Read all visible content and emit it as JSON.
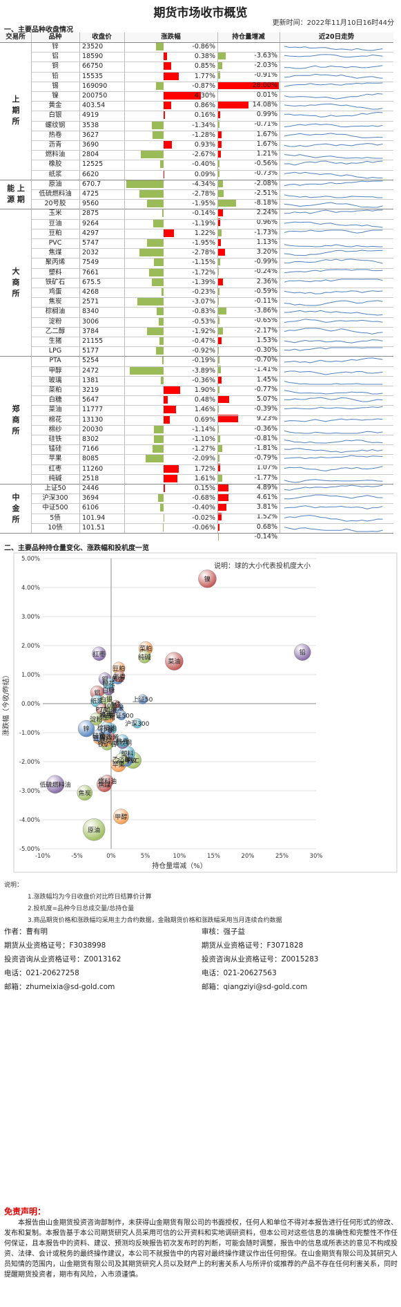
{
  "title": "期货市场收市概览",
  "update_time": "更新时间：2022年11月10日16时44分",
  "section1": "一、主要品种收盘情况",
  "section2": "二、主要品种持仓量变化、涨跌幅和投机度一览",
  "headers": [
    "交易所",
    "品种",
    "收盘价",
    "涨跌幅",
    "持仓量增减",
    "近20日走势"
  ],
  "colors": {
    "up": "#ff0000",
    "down": "#9bbb59",
    "spark": "#4f81bd"
  },
  "rows": [
    {
      "n": "锌",
      "p": "23520",
      "c": -0.86,
      "o": -3.63,
      "cs": "-0.86%",
      "os": "-3.63%"
    },
    {
      "n": "铝",
      "p": "18590",
      "c": 0.38,
      "o": -2.03,
      "cs": "0.38%",
      "os": "-2.03%"
    },
    {
      "n": "铜",
      "p": "66750",
      "c": 0.85,
      "o": -0.91,
      "cs": "0.85%",
      "os": "-0.91%"
    },
    {
      "n": "铅",
      "p": "15535",
      "c": 1.77,
      "o": 28.0,
      "cs": "1.77%",
      "os": "28.00%"
    },
    {
      "n": "锡",
      "p": "169090",
      "c": -0.87,
      "o": 0.01,
      "cs": "-0.87%",
      "os": "0.01%"
    },
    {
      "n": "镍",
      "p": "200750",
      "c": 4.3,
      "o": 14.08,
      "cs": "4.30%",
      "os": "14.08%"
    },
    {
      "n": "黄金",
      "p": "403.54",
      "c": 0.86,
      "o": 0.99,
      "cs": "0.86%",
      "os": "0.99%"
    },
    {
      "n": "白银",
      "p": "4919",
      "c": 0.16,
      "o": -0.71,
      "cs": "0.16%",
      "os": "-0.71%"
    },
    {
      "n": "螺纹钢",
      "p": "3538",
      "c": -1.34,
      "o": 1.67,
      "cs": "-1.34%",
      "os": "1.67%"
    },
    {
      "n": "热卷",
      "p": "3627",
      "c": -1.28,
      "o": 1.67,
      "cs": "-1.28%",
      "os": "1.67%"
    },
    {
      "n": "沥青",
      "p": "3690",
      "c": 0.93,
      "o": 1.21,
      "cs": "0.93%",
      "os": "1.21%"
    },
    {
      "n": "燃料油",
      "p": "2804",
      "c": -2.67,
      "o": -0.56,
      "cs": "-2.67%",
      "os": "-0.56%"
    },
    {
      "n": "橡胶",
      "p": "12525",
      "c": -0.4,
      "o": -0.73,
      "cs": "-0.40%",
      "os": "-0.73%"
    },
    {
      "n": "纸浆",
      "p": "6620",
      "c": 0.09,
      "o": -2.08,
      "cs": "0.09%",
      "os": "-2.08%"
    },
    {
      "n": "原油",
      "p": "670.7",
      "c": -4.34,
      "o": -2.51,
      "cs": "-4.34%",
      "os": "-2.51%"
    },
    {
      "n": "低硫燃料油",
      "p": "4725",
      "c": -2.78,
      "o": -8.18,
      "cs": "-2.78%",
      "os": "-8.18%"
    },
    {
      "n": "20号胶",
      "p": "9560",
      "c": -1.95,
      "o": 2.24,
      "cs": "-1.95%",
      "os": "2.24%"
    },
    {
      "n": "玉米",
      "p": "2875",
      "c": -0.14,
      "o": 0.96,
      "cs": "-0.14%",
      "os": "0.96%"
    },
    {
      "n": "豆油",
      "p": "9264",
      "c": -1.19,
      "o": -1.73,
      "cs": "-1.19%",
      "os": "-1.73%"
    },
    {
      "n": "豆粕",
      "p": "4297",
      "c": 1.22,
      "o": 1.13,
      "cs": "1.22%",
      "os": "1.13%"
    },
    {
      "n": "PVC",
      "p": "5747",
      "c": -1.95,
      "o": 3.2,
      "cs": "-1.95%",
      "os": "3.20%"
    },
    {
      "n": "焦煤",
      "p": "2032",
      "c": -2.78,
      "o": -0.99,
      "cs": "-2.78%",
      "os": "-0.99%"
    },
    {
      "n": "聚丙烯",
      "p": "7549",
      "c": -1.15,
      "o": -0.24,
      "cs": "-1.15%",
      "os": "-0.24%"
    },
    {
      "n": "塑料",
      "p": "7661",
      "c": -1.72,
      "o": 2.36,
      "cs": "-1.72%",
      "os": "2.36%"
    },
    {
      "n": "铁矿石",
      "p": "675.5",
      "c": -1.39,
      "o": -0.59,
      "cs": "-1.39%",
      "os": "-0.59%"
    },
    {
      "n": "鸡蛋",
      "p": "4268",
      "c": -0.23,
      "o": -0.11,
      "cs": "-0.23%",
      "os": "-0.11%"
    },
    {
      "n": "焦炭",
      "p": "2571",
      "c": -3.07,
      "o": -3.86,
      "cs": "-3.07%",
      "os": "-3.86%"
    },
    {
      "n": "棕榈油",
      "p": "8340",
      "c": -0.83,
      "o": -0.65,
      "cs": "-0.83%",
      "os": "-0.65%"
    },
    {
      "n": "淀粉",
      "p": "3006",
      "c": -0.53,
      "o": -2.17,
      "cs": "-0.53%",
      "os": "-2.17%"
    },
    {
      "n": "乙二醇",
      "p": "3784",
      "c": -1.92,
      "o": 1.53,
      "cs": "-1.92%",
      "os": "1.53%"
    },
    {
      "n": "生猪",
      "p": "21155",
      "c": -0.47,
      "o": -0.3,
      "cs": "-0.47%",
      "os": "-0.30%"
    },
    {
      "n": "LPG",
      "p": "5177",
      "c": -0.92,
      "o": -0.7,
      "cs": "-0.92%",
      "os": "-0.70%"
    },
    {
      "n": "PTA",
      "p": "5254",
      "c": -0.19,
      "o": -1.41,
      "cs": "-0.19%",
      "os": "-1.41%"
    },
    {
      "n": "甲醇",
      "p": "2472",
      "c": -3.89,
      "o": 1.45,
      "cs": "-3.89%",
      "os": "1.45%"
    },
    {
      "n": "玻璃",
      "p": "1381",
      "c": -0.36,
      "o": -0.77,
      "cs": "-0.36%",
      "os": "-0.77%"
    },
    {
      "n": "菜粕",
      "p": "3219",
      "c": 1.9,
      "o": 5.07,
      "cs": "1.90%",
      "os": "5.07%"
    },
    {
      "n": "白糖",
      "p": "5647",
      "c": 0.48,
      "o": -0.39,
      "cs": "0.48%",
      "os": "-0.39%"
    },
    {
      "n": "菜油",
      "p": "11777",
      "c": 1.46,
      "o": 9.23,
      "cs": "1.46%",
      "os": "9.23%"
    },
    {
      "n": "棉花",
      "p": "13130",
      "c": 0.69,
      "o": -0.36,
      "cs": "0.69%",
      "os": "-0.36%"
    },
    {
      "n": "棉纱",
      "p": "20030",
      "c": -1.14,
      "o": -0.81,
      "cs": "-1.14%",
      "os": "-0.81%"
    },
    {
      "n": "硅铁",
      "p": "8302",
      "c": -1.1,
      "o": -1.81,
      "cs": "-1.10%",
      "os": "-1.81%"
    },
    {
      "n": "锰硅",
      "p": "7166",
      "c": -1.27,
      "o": -0.79,
      "cs": "-1.27%",
      "os": "-0.79%"
    },
    {
      "n": "苹果",
      "p": "8085",
      "c": -2.09,
      "o": 1.07,
      "cs": "-2.09%",
      "os": "1.07%"
    },
    {
      "n": "红枣",
      "p": "11260",
      "c": 1.72,
      "o": -1.77,
      "cs": "1.72%",
      "os": "-1.77%"
    },
    {
      "n": "纯碱",
      "p": "2518",
      "c": 1.61,
      "o": 4.89,
      "cs": "1.61%",
      "os": "4.89%"
    },
    {
      "n": "上证50",
      "p": "2446",
      "c": 0.15,
      "o": 4.61,
      "cs": "0.15%",
      "os": "4.61%"
    },
    {
      "n": "沪深300",
      "p": "3694",
      "c": -0.68,
      "o": 3.81,
      "cs": "-0.68%",
      "os": "3.81%"
    },
    {
      "n": "中证500",
      "p": "6106",
      "c": -0.4,
      "o": 1.52,
      "cs": "-0.40%",
      "os": "1.52%"
    },
    {
      "n": "5债",
      "p": "101.94",
      "c": -0.02,
      "o": 0.68,
      "cs": "-0.02%",
      "os": "0.68%"
    },
    {
      "n": "10债",
      "p": "101.51",
      "c": -0.06,
      "o": -0.14,
      "cs": "-0.06%",
      "os": "-0.14%"
    }
  ],
  "exchanges": [
    {
      "label": "上\n期\n所",
      "start": 0,
      "end": 14
    },
    {
      "label": "能 上\n源 期",
      "start": 14,
      "end": 17
    },
    {
      "label": "大\n商\n所",
      "start": 17,
      "end": 32
    },
    {
      "label": "郑\n商\n所",
      "start": 32,
      "end": 45
    },
    {
      "label": "中\n金\n所",
      "start": 45,
      "end": 50
    }
  ],
  "chart_data": {
    "type": "scatter",
    "title": "",
    "note": "说明：球的大小代表投机度大小",
    "xlabel": "持仓量增减（%）",
    "ylabel": "涨跌幅（今收/昨结）",
    "xlim": [
      -10,
      30
    ],
    "ylim": [
      -5,
      5
    ],
    "xticks": [
      "-10%",
      "-5%",
      "0%",
      "5%",
      "10%",
      "15%",
      "20%",
      "25%",
      "30%"
    ],
    "yticks": [
      "5.00%",
      "4.00%",
      "3.00%",
      "2.00%",
      "1.00%",
      "0.00%",
      "-1.00%",
      "-2.00%",
      "-3.00%",
      "-4.00%",
      "-5.00%"
    ],
    "points": [
      {
        "label": "镍",
        "x": 14.08,
        "y": 4.3,
        "s": 13,
        "color": "#c0504d"
      },
      {
        "label": "铅",
        "x": 28.0,
        "y": 1.77,
        "s": 12,
        "color": "#8064a2"
      },
      {
        "label": "菜油",
        "x": 9.23,
        "y": 1.46,
        "s": 13,
        "color": "#c0504d"
      },
      {
        "label": "沪深300",
        "x": 3.81,
        "y": -0.68,
        "s": 7,
        "color": "#4bacc6"
      },
      {
        "label": "上证50",
        "x": 4.61,
        "y": 0.15,
        "s": 7,
        "color": "#4f81bd"
      },
      {
        "label": "菜粕",
        "x": 5.07,
        "y": 1.9,
        "s": 10,
        "color": "#f79646"
      },
      {
        "label": "纯碱",
        "x": 4.89,
        "y": 1.61,
        "s": 9,
        "color": "#9bbb59"
      },
      {
        "label": "棉纱",
        "x": -0.81,
        "y": -1.14,
        "s": 10,
        "color": "#8064a2"
      },
      {
        "label": "红枣",
        "x": -1.77,
        "y": 1.72,
        "s": 10,
        "color": "#8064a2"
      },
      {
        "label": "锌",
        "x": -3.63,
        "y": -0.86,
        "s": 12,
        "color": "#4f81bd"
      },
      {
        "label": "低硫燃料油",
        "x": -8.18,
        "y": -2.78,
        "s": 13,
        "color": "#8064a2"
      },
      {
        "label": "焦炭",
        "x": -3.86,
        "y": -3.07,
        "s": 11,
        "color": "#9bbb59"
      },
      {
        "label": "原油",
        "x": -2.51,
        "y": -4.34,
        "s": 16,
        "color": "#9bbb59"
      },
      {
        "label": "甲醇",
        "x": 1.45,
        "y": -3.89,
        "s": 11,
        "color": "#f79646"
      },
      {
        "label": "焦煤",
        "x": -0.99,
        "y": -2.78,
        "s": 11,
        "color": "#c0504d"
      },
      {
        "label": "PVC",
        "x": 3.2,
        "y": -1.95,
        "s": 12,
        "color": "#9bbb59"
      },
      {
        "label": "塑料",
        "x": 2.36,
        "y": -1.72,
        "s": 11,
        "color": "#4bacc6"
      },
      {
        "label": "苹果",
        "x": 1.07,
        "y": -2.09,
        "s": 11,
        "color": "#f79646"
      },
      {
        "label": "20号胶",
        "x": 2.24,
        "y": -1.95,
        "s": 9,
        "color": "#4f81bd"
      },
      {
        "label": "淀粉",
        "x": -2.17,
        "y": -0.53,
        "s": 9,
        "color": "#9bbb59"
      },
      {
        "label": "铝",
        "x": -2.03,
        "y": 0.38,
        "s": 10,
        "color": "#c0504d"
      },
      {
        "label": "纸浆",
        "x": -2.08,
        "y": 0.09,
        "s": 9,
        "color": "#4bacc6"
      },
      {
        "label": "豆油",
        "x": -1.73,
        "y": -1.19,
        "s": 9,
        "color": "#f79646"
      },
      {
        "label": "硅铁",
        "x": -1.81,
        "y": -1.1,
        "s": 9,
        "color": "#4f81bd"
      },
      {
        "label": "燃料油",
        "x": -0.56,
        "y": -2.67,
        "s": 9,
        "color": "#c0504d"
      },
      {
        "label": "乙二醇",
        "x": 1.53,
        "y": -1.92,
        "s": 9,
        "color": "#9bbb59"
      },
      {
        "label": "螺纹钢",
        "x": 1.67,
        "y": -1.34,
        "s": 9,
        "color": "#8064a2"
      },
      {
        "label": "热卷",
        "x": 1.67,
        "y": -1.28,
        "s": 9,
        "color": "#4bacc6"
      },
      {
        "label": "豆粕",
        "x": 1.13,
        "y": 1.22,
        "s": 9,
        "color": "#f79646"
      },
      {
        "label": "黄金",
        "x": 0.99,
        "y": 0.86,
        "s": 8,
        "color": "#4f81bd"
      },
      {
        "label": "沥青",
        "x": 1.21,
        "y": 0.93,
        "s": 8,
        "color": "#c0504d"
      },
      {
        "label": "白银",
        "x": -0.71,
        "y": 0.16,
        "s": 8,
        "color": "#9bbb59"
      },
      {
        "label": "铜",
        "x": -0.91,
        "y": 0.85,
        "s": 9,
        "color": "#8064a2"
      },
      {
        "label": "锡",
        "x": 0.01,
        "y": -0.87,
        "s": 8,
        "color": "#4bacc6"
      },
      {
        "label": "橡胶",
        "x": -0.73,
        "y": -0.4,
        "s": 9,
        "color": "#f79646"
      },
      {
        "label": "玉米",
        "x": 0.96,
        "y": -0.14,
        "s": 8,
        "color": "#4f81bd"
      },
      {
        "label": "聚丙烯",
        "x": -0.24,
        "y": -1.15,
        "s": 8,
        "color": "#c0504d"
      },
      {
        "label": "铁矿石",
        "x": -0.59,
        "y": -1.39,
        "s": 9,
        "color": "#9bbb59"
      },
      {
        "label": "鸡蛋",
        "x": -0.11,
        "y": -0.23,
        "s": 8,
        "color": "#8064a2"
      },
      {
        "label": "棕榈油",
        "x": -0.65,
        "y": -0.83,
        "s": 9,
        "color": "#4bacc6"
      },
      {
        "label": "生猪",
        "x": -0.3,
        "y": -0.47,
        "s": 8,
        "color": "#f79646"
      },
      {
        "label": "LPG",
        "x": -0.7,
        "y": -0.92,
        "s": 8,
        "color": "#4f81bd"
      },
      {
        "label": "PTA",
        "x": -1.41,
        "y": -0.19,
        "s": 8,
        "color": "#c0504d"
      },
      {
        "label": "玻璃",
        "x": -0.77,
        "y": -0.36,
        "s": 9,
        "color": "#9bbb59"
      },
      {
        "label": "白糖",
        "x": -0.39,
        "y": 0.48,
        "s": 8,
        "color": "#8064a2"
      },
      {
        "label": "棉花",
        "x": -0.36,
        "y": 0.69,
        "s": 8,
        "color": "#4bacc6"
      },
      {
        "label": "锰硅",
        "x": -0.79,
        "y": -1.27,
        "s": 9,
        "color": "#f79646"
      },
      {
        "label": "中证500",
        "x": 1.52,
        "y": -0.4,
        "s": 7,
        "color": "#4f81bd"
      },
      {
        "label": "5债",
        "x": 0.68,
        "y": -0.02,
        "s": 6,
        "color": "#c0504d"
      },
      {
        "label": "10债",
        "x": -0.14,
        "y": -0.06,
        "s": 6,
        "color": "#9bbb59"
      }
    ]
  },
  "notes": [
    "说明：",
    "1.涨跌幅均为今日收盘价对比昨日结算价计算",
    "2.投机度=品种今日总成交量/总持仓量",
    "3.商品期货价格和涨跌幅均采用主力合约数据，金融期货价格和涨跌幅采用当月连续合约数据"
  ],
  "authors": {
    "left": [
      "作者：曹有明",
      "期货从业资格证号：F3038998",
      "投资咨询从业资格证号：Z0013162",
      "电话：021-20627258",
      "邮箱：zhumeixia@sd-gold.com"
    ],
    "right": [
      "审核：强子益",
      "期货从业资格证号：F3071828",
      "投资咨询从业资格证号：Z0015283",
      "电话：021-20627563",
      "邮箱：qiangziyi@sd-gold.com"
    ]
  },
  "disclaimer_title": "免责声明：",
  "disclaimer": "本报告由山金期货投资咨询部制作，未获得山金期货有限公司的书面授权，任何人和单位不得对本报告进行任何形式的修改、发布和复制。本报告基于本公司期货研究人员采用可信的公开资料和实地调研资料，但本公司对这些信息的准确性和完整性不作任何保证，且本报告中的资料、建议、预测均反映报告初次发布时的判断，可能会随时调整，报告中的信息或所表达的意见不构成投资、法律、会计或税务的最终操作建议，本公司不就报告中的内容对最终操作建议作出任何担保。在山金期货有限公司及其研究人员知情的范围内，山金期货有限公司及其期货研究人员以及财产上的利害关系人与所评价或推荐的产品不存在任何利害关系，同时提醒期货投资者，期市有风险，入市须谨慎。"
}
